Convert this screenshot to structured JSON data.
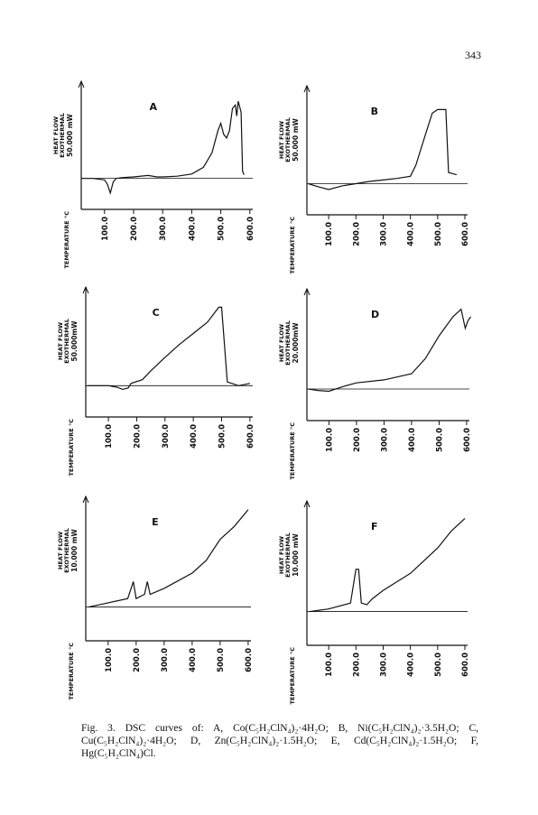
{
  "page_number": "343",
  "chart_data": [
    {
      "type": "line",
      "title": "A",
      "ylabel": [
        "HEAT FLOW",
        "EXOTHERMAL"
      ],
      "scale_label": "50.000 mW",
      "xlabel": "TEMPERATURE °C",
      "color": "#111111",
      "xlim": [
        20,
        610
      ],
      "ylim": [
        -25,
        120
      ],
      "xticks": [
        {
          "value": 100,
          "label": "100.0"
        },
        {
          "value": 200,
          "label": "200.0"
        },
        {
          "value": 300,
          "label": "300.0"
        },
        {
          "value": 400,
          "label": "400.0"
        },
        {
          "value": 500,
          "label": "500.0"
        },
        {
          "value": 600,
          "label": "600.0"
        }
      ],
      "x": [
        20,
        60,
        100,
        110,
        120,
        130,
        140,
        160,
        200,
        250,
        280,
        300,
        350,
        400,
        440,
        470,
        490,
        500,
        510,
        520,
        530,
        540,
        550,
        555,
        560,
        570,
        575,
        580
      ],
      "values": [
        0,
        0,
        -2,
        -8,
        -20,
        -5,
        0,
        1,
        2,
        4,
        2,
        2,
        3,
        6,
        15,
        35,
        65,
        75,
        60,
        55,
        65,
        95,
        100,
        85,
        105,
        90,
        10,
        5
      ]
    },
    {
      "type": "line",
      "title": "B",
      "ylabel": [
        "HEAT FLOW",
        "EXOTHERMAL"
      ],
      "scale_label": "50.000 mW",
      "xlabel": "TEMPERATURE °C",
      "color": "#111111",
      "xlim": [
        20,
        610
      ],
      "ylim": [
        -25,
        120
      ],
      "xticks": [
        {
          "value": 100,
          "label": "100.0"
        },
        {
          "value": 200,
          "label": "200.0"
        },
        {
          "value": 300,
          "label": "300.0"
        },
        {
          "value": 400,
          "label": "400.0"
        },
        {
          "value": 500,
          "label": "500.0"
        },
        {
          "value": 600,
          "label": "600.0"
        }
      ],
      "x": [
        25,
        60,
        100,
        150,
        200,
        250,
        300,
        350,
        400,
        420,
        450,
        480,
        500,
        530,
        540,
        570
      ],
      "values": [
        0,
        -4,
        -8,
        -3,
        0,
        3,
        5,
        7,
        10,
        25,
        60,
        95,
        100,
        100,
        15,
        12
      ]
    },
    {
      "type": "line",
      "title": "C",
      "ylabel": [
        "HEAT FLOW",
        "EXOTHERMAL"
      ],
      "scale_label": "50.000mW",
      "xlabel": "TEMPERATURE °C",
      "color": "#111111",
      "xlim": [
        20,
        610
      ],
      "ylim": [
        -25,
        120
      ],
      "xticks": [
        {
          "value": 100,
          "label": "100.0"
        },
        {
          "value": 200,
          "label": "200.0"
        },
        {
          "value": 300,
          "label": "300.0"
        },
        {
          "value": 400,
          "label": "400.0"
        },
        {
          "value": 500,
          "label": "500.0"
        },
        {
          "value": 600,
          "label": "600.0"
        }
      ],
      "x": [
        25,
        100,
        130,
        150,
        170,
        180,
        220,
        250,
        300,
        350,
        400,
        450,
        490,
        500,
        520,
        560,
        600
      ],
      "values": [
        0,
        0,
        -2,
        -5,
        -3,
        3,
        8,
        20,
        38,
        55,
        70,
        85,
        105,
        105,
        5,
        0,
        3
      ]
    },
    {
      "type": "line",
      "title": "D",
      "ylabel": [
        "HEAT FLOW",
        "EXOTHERMAL"
      ],
      "scale_label": "20.000mW",
      "xlabel": "TEMPERATURE °C",
      "color": "#111111",
      "xlim": [
        20,
        610
      ],
      "ylim": [
        -25,
        120
      ],
      "xticks": [
        {
          "value": 100,
          "label": "100.0"
        },
        {
          "value": 200,
          "label": "200.0"
        },
        {
          "value": 300,
          "label": "300.0"
        },
        {
          "value": 400,
          "label": "400.0"
        },
        {
          "value": 500,
          "label": "500.0"
        },
        {
          "value": 600,
          "label": "600.0"
        }
      ],
      "x": [
        25,
        60,
        100,
        150,
        200,
        300,
        400,
        450,
        500,
        550,
        580,
        595,
        605,
        615
      ],
      "values": [
        0,
        -2,
        -3,
        3,
        8,
        12,
        20,
        40,
        70,
        95,
        105,
        80,
        90,
        95
      ]
    },
    {
      "type": "line",
      "title": "E",
      "ylabel": [
        "HEAT FLOW",
        "EXOTHERMAL"
      ],
      "scale_label": "10.000 mW",
      "xlabel": "TEMPERATURE °C",
      "color": "#111111",
      "xlim": [
        20,
        610
      ],
      "ylim": [
        -25,
        120
      ],
      "xticks": [
        {
          "value": 100,
          "label": "100.0"
        },
        {
          "value": 200,
          "label": "200.0"
        },
        {
          "value": 300,
          "label": "300.0"
        },
        {
          "value": 400,
          "label": "400.0"
        },
        {
          "value": 500,
          "label": "500.0"
        },
        {
          "value": 600,
          "label": "600.0"
        }
      ],
      "x": [
        30,
        100,
        170,
        190,
        200,
        230,
        240,
        250,
        300,
        400,
        450,
        500,
        550,
        600
      ],
      "values": [
        0,
        5,
        10,
        30,
        10,
        15,
        30,
        15,
        22,
        40,
        55,
        80,
        95,
        115
      ]
    },
    {
      "type": "line",
      "title": "F",
      "ylabel": [
        "HEAT FLOW",
        "EXOTHERMAL"
      ],
      "scale_label": "10.000 mW",
      "xlabel": "TEMPERATURE °C",
      "color": "#111111",
      "xlim": [
        20,
        610
      ],
      "ylim": [
        -25,
        120
      ],
      "xticks": [
        {
          "value": 100,
          "label": "100.0"
        },
        {
          "value": 200,
          "label": "200.0"
        },
        {
          "value": 300,
          "label": "300.0"
        },
        {
          "value": 400,
          "label": "400.0"
        },
        {
          "value": 500,
          "label": "500.0"
        },
        {
          "value": 600,
          "label": "600.0"
        }
      ],
      "x": [
        30,
        100,
        180,
        200,
        210,
        220,
        240,
        260,
        300,
        400,
        500,
        550,
        600
      ],
      "values": [
        0,
        3,
        10,
        50,
        50,
        10,
        8,
        15,
        25,
        45,
        75,
        95,
        110
      ]
    }
  ],
  "caption": "Fig. 3. DSC curves of: A, Co(C₅H₂ClN₄)₂·4H₂O; B, Ni(C₅H₂ClN₄)₂·3.5H₂O; C, Cu(C₅H₂ClN₄)₂·4H₂O; D, Zn(C₅H₂ClN₄)₂·1.5H₂O; E, Cd(C₅H₂ClN₄)₂·1.5H₂O; F, Hg(C₅H₂ClN₄)Cl."
}
